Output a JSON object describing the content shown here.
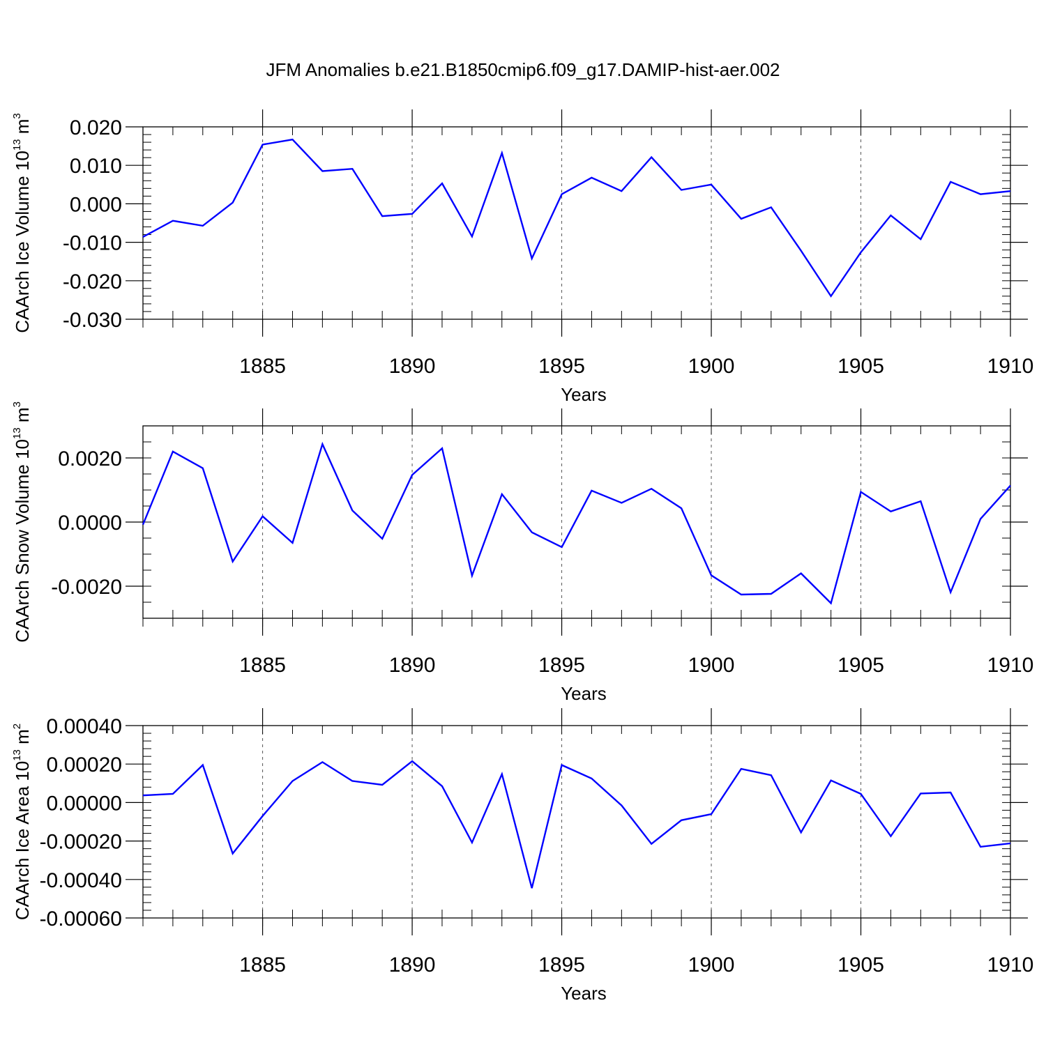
{
  "title": "JFM Anomalies b.e21.B1850cmip6.f09_g17.DAMIP-hist-aer.002",
  "colors": {
    "series": "#0000ff",
    "axes": "#000000",
    "grid": "#555555"
  },
  "chart_data": [
    {
      "type": "line",
      "ylabel": "CAArch Ice Volume 10",
      "ylabel_sup": "13",
      "ylabel_tail": " m",
      "ylabel_sup2": "3",
      "xlabel": "Years",
      "xlim": [
        1881,
        1910
      ],
      "ylim": [
        -0.03,
        0.02
      ],
      "y_major_ticks": [
        -0.03,
        -0.02,
        -0.01,
        0.0,
        0.01,
        0.02
      ],
      "y_tick_labels": [
        "-0.030",
        "-0.020",
        "-0.010",
        "0.000",
        "0.010",
        "0.020"
      ],
      "y_minor_step": 0.002,
      "x_major_ticks": [
        1885,
        1890,
        1895,
        1900,
        1905,
        1910
      ],
      "x_tick_labels": [
        "1885",
        "1890",
        "1895",
        "1900",
        "1905",
        "1910"
      ],
      "grid_x": [
        1885,
        1890,
        1895,
        1900,
        1905
      ],
      "series": [
        {
          "name": "CAArch Ice Volume",
          "x": [
            1881,
            1882,
            1883,
            1884,
            1885,
            1886,
            1887,
            1888,
            1889,
            1890,
            1891,
            1892,
            1893,
            1894,
            1895,
            1896,
            1897,
            1898,
            1899,
            1900,
            1901,
            1902,
            1903,
            1904,
            1905,
            1906,
            1907,
            1908,
            1909,
            1910
          ],
          "values": [
            -0.0086,
            -0.0044,
            -0.0057,
            0.0003,
            0.0154,
            0.0167,
            0.0085,
            0.0091,
            -0.0032,
            -0.0026,
            0.0053,
            -0.0085,
            0.0132,
            -0.0142,
            0.0025,
            0.0068,
            0.0033,
            0.0121,
            0.0036,
            0.005,
            -0.0039,
            -0.0009,
            -0.0122,
            -0.024,
            -0.0126,
            -0.003,
            -0.0092,
            0.0057,
            0.0025,
            0.0033
          ]
        }
      ]
    },
    {
      "type": "line",
      "ylabel": "CAArch Snow Volume 10",
      "ylabel_sup": "13",
      "ylabel_tail": " m",
      "ylabel_sup2": "3",
      "xlabel": "Years",
      "xlim": [
        1881,
        1910
      ],
      "ylim": [
        -0.003,
        0.003
      ],
      "y_major_ticks": [
        -0.002,
        0.0,
        0.002
      ],
      "y_tick_labels": [
        "-0.0020",
        "0.0000",
        "0.0020"
      ],
      "y_minor_step": 0.0005,
      "x_major_ticks": [
        1885,
        1890,
        1895,
        1900,
        1905,
        1910
      ],
      "x_tick_labels": [
        "1885",
        "1890",
        "1895",
        "1900",
        "1905",
        "1910"
      ],
      "grid_x": [
        1885,
        1890,
        1895,
        1900,
        1905
      ],
      "series": [
        {
          "name": "CAArch Snow Volume",
          "x": [
            1881,
            1882,
            1883,
            1884,
            1885,
            1886,
            1887,
            1888,
            1889,
            1890,
            1891,
            1892,
            1893,
            1894,
            1895,
            1896,
            1897,
            1898,
            1899,
            1900,
            1901,
            1902,
            1903,
            1904,
            1905,
            1906,
            1907,
            1908,
            1909,
            1910
          ],
          "values": [
            -8e-05,
            0.0022,
            0.00168,
            -0.00123,
            0.00018,
            -0.00065,
            0.00243,
            0.00036,
            -0.00052,
            0.00147,
            0.0023,
            -0.00167,
            0.00087,
            -0.00032,
            -0.00078,
            0.00098,
            0.0006,
            0.00104,
            0.00043,
            -0.00166,
            -0.00226,
            -0.00224,
            -0.0016,
            -0.00253,
            0.00094,
            0.00033,
            0.00065,
            -0.00219,
            0.0001,
            0.00114
          ]
        }
      ]
    },
    {
      "type": "line",
      "ylabel": "CAArch Ice Area 10",
      "ylabel_sup": "13",
      "ylabel_tail": " m",
      "ylabel_sup2": "2",
      "xlabel": "Years",
      "xlim": [
        1881,
        1910
      ],
      "ylim": [
        -0.0006,
        0.0004
      ],
      "y_major_ticks": [
        -0.0006,
        -0.0004,
        -0.0002,
        0.0,
        0.0002,
        0.0004
      ],
      "y_tick_labels": [
        "-0.00060",
        "-0.00040",
        "-0.00020",
        "0.00000",
        "0.00020",
        "0.00040"
      ],
      "y_minor_step": 4e-05,
      "x_major_ticks": [
        1885,
        1890,
        1895,
        1900,
        1905,
        1910
      ],
      "x_tick_labels": [
        "1885",
        "1890",
        "1895",
        "1900",
        "1905",
        "1910"
      ],
      "grid_x": [
        1885,
        1890,
        1895,
        1900,
        1905
      ],
      "series": [
        {
          "name": "CAArch Ice Area",
          "x": [
            1881,
            1882,
            1883,
            1884,
            1885,
            1886,
            1887,
            1888,
            1889,
            1890,
            1891,
            1892,
            1893,
            1894,
            1895,
            1896,
            1897,
            1898,
            1899,
            1900,
            1901,
            1902,
            1903,
            1904,
            1905,
            1906,
            1907,
            1908,
            1909,
            1910
          ],
          "values": [
            3.7e-05,
            4.5e-05,
            0.000195,
            -0.000265,
            -7e-05,
            0.000112,
            0.00021,
            0.000112,
            9.2e-05,
            0.000215,
            8.5e-05,
            -0.000208,
            0.000148,
            -0.000445,
            0.000195,
            0.000125,
            -1.5e-05,
            -0.000215,
            -9.2e-05,
            -6e-05,
            0.000175,
            0.000142,
            -0.000155,
            0.000115,
            4.5e-05,
            -0.000175,
            4.7e-05,
            5.2e-05,
            -0.00023,
            -0.000212
          ]
        }
      ]
    }
  ]
}
